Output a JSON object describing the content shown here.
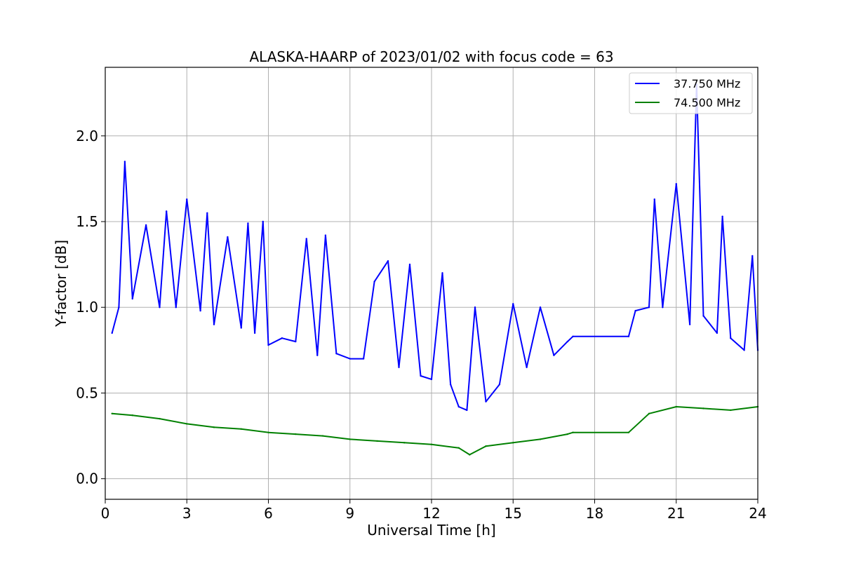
{
  "chart_data": {
    "type": "line",
    "title": "ALASKA-HAARP of 2023/01/02 with focus code = 63",
    "xlabel": "Universal Time [h]",
    "ylabel": "Y-factor [dB]",
    "xlim": [
      0,
      24
    ],
    "ylim": [
      -0.12,
      2.4
    ],
    "xticks": [
      0,
      3,
      6,
      9,
      12,
      15,
      18,
      21,
      24
    ],
    "xtick_labels": [
      "0",
      "3",
      "6",
      "9",
      "12",
      "15",
      "18",
      "21",
      "24"
    ],
    "yticks": [
      0.0,
      0.5,
      1.0,
      1.5,
      2.0
    ],
    "ytick_labels": [
      "0.0",
      "0.5",
      "1.0",
      "1.5",
      "2.0"
    ],
    "grid": true,
    "legend_position": "top-right",
    "series": [
      {
        "name": "37.750 MHz",
        "color": "#0000ff",
        "x": [
          0.25,
          0.5,
          0.72,
          1.0,
          1.5,
          2.0,
          2.25,
          2.6,
          3.0,
          3.5,
          3.75,
          4.0,
          4.5,
          5.0,
          5.25,
          5.5,
          5.8,
          6.0,
          6.5,
          7.0,
          7.4,
          7.8,
          8.1,
          8.5,
          9.0,
          9.5,
          9.9,
          10.4,
          10.8,
          11.2,
          11.6,
          12.0,
          12.4,
          12.7,
          13.0,
          13.3,
          13.6,
          14.0,
          14.5,
          15.0,
          15.5,
          16.0,
          16.5,
          17.0,
          17.2,
          19.25,
          19.5,
          20.0,
          20.2,
          20.5,
          21.0,
          21.5,
          21.75,
          22.0,
          22.5,
          22.7,
          23.0,
          23.5,
          23.8,
          24.0
        ],
        "values": [
          0.85,
          1.0,
          1.85,
          1.05,
          1.48,
          1.0,
          1.56,
          1.0,
          1.63,
          0.98,
          1.55,
          0.9,
          1.41,
          0.88,
          1.49,
          0.85,
          1.5,
          0.78,
          0.82,
          0.8,
          1.4,
          0.72,
          1.42,
          0.73,
          0.7,
          0.7,
          1.15,
          1.27,
          0.65,
          1.25,
          0.6,
          0.58,
          1.2,
          0.55,
          0.42,
          0.4,
          1.0,
          0.45,
          0.55,
          1.02,
          0.65,
          1.0,
          0.72,
          0.8,
          0.83,
          0.83,
          0.98,
          1.0,
          1.63,
          1.0,
          1.72,
          0.9,
          2.3,
          0.95,
          0.85,
          1.53,
          0.82,
          0.75,
          1.3,
          0.75
        ]
      },
      {
        "name": "74.500 MHz",
        "color": "#008000",
        "x": [
          0.25,
          1.0,
          2.0,
          3.0,
          4.0,
          5.0,
          6.0,
          7.0,
          8.0,
          9.0,
          10.0,
          11.0,
          12.0,
          13.0,
          13.4,
          14.0,
          15.0,
          16.0,
          17.0,
          17.2,
          19.25,
          20.0,
          21.0,
          22.0,
          23.0,
          24.0
        ],
        "values": [
          0.38,
          0.37,
          0.35,
          0.32,
          0.3,
          0.29,
          0.27,
          0.26,
          0.25,
          0.23,
          0.22,
          0.21,
          0.2,
          0.18,
          0.14,
          0.19,
          0.21,
          0.23,
          0.26,
          0.27,
          0.27,
          0.38,
          0.42,
          0.41,
          0.4,
          0.42
        ]
      }
    ]
  }
}
